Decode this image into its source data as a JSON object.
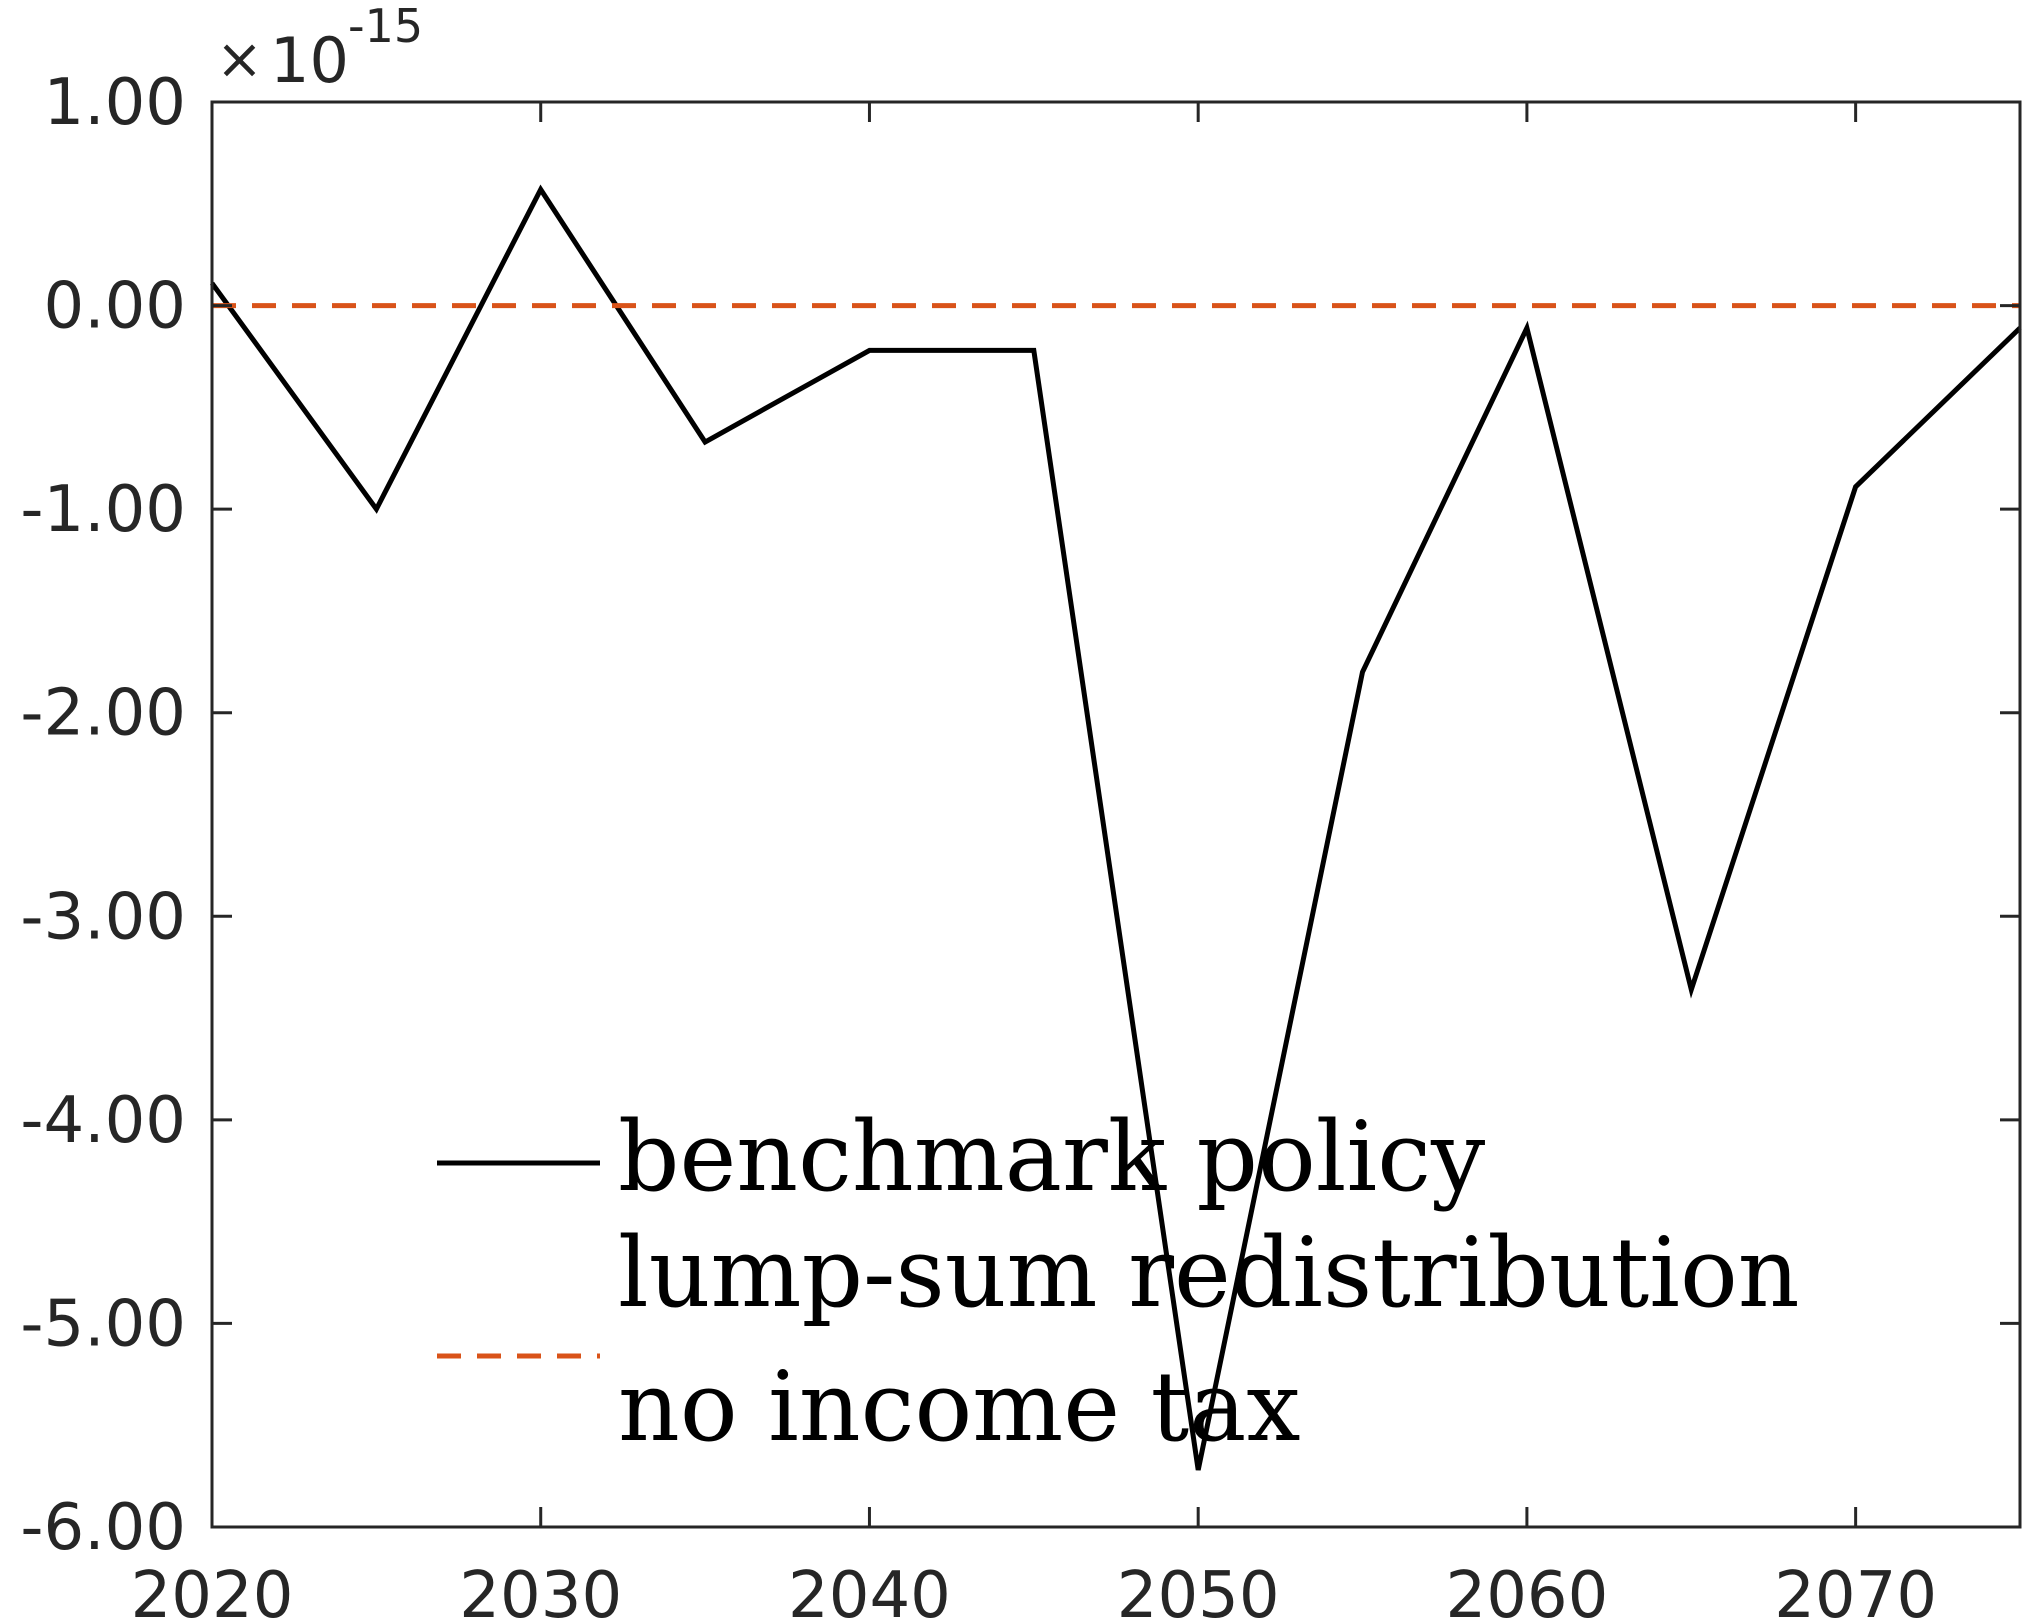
{
  "chart_data": {
    "type": "line",
    "x": [
      2020,
      2025,
      2030,
      2035,
      2040,
      2045,
      2050,
      2055,
      2060,
      2065,
      2070,
      2075
    ],
    "xlim": [
      2020,
      2075
    ],
    "ylim": [
      -6,
      1
    ],
    "y_multiplier": {
      "times": "×",
      "base": "10",
      "exponent": "-15"
    },
    "xticks": [
      2020,
      2030,
      2040,
      2050,
      2060,
      2070
    ],
    "xtick_labels": [
      "2020",
      "2030",
      "2040",
      "2050",
      "2060",
      "2070"
    ],
    "yticks": [
      1,
      0,
      -1,
      -2,
      -3,
      -4,
      -5,
      -6
    ],
    "ytick_labels": [
      "1.00",
      "0.00",
      "-1.00",
      "-2.00",
      "-3.00",
      "-4.00",
      "-5.00",
      "-6.00"
    ],
    "series": [
      {
        "name": "benchmark policy",
        "color": "#000000",
        "dash": "solid",
        "values": [
          0.11,
          -1.0,
          0.57,
          -0.67,
          -0.22,
          -0.22,
          -5.72,
          -1.8,
          -0.11,
          -3.36,
          -0.89,
          -0.11
        ]
      },
      {
        "name": "lump-sum redistribution",
        "color": "#000000",
        "dash": "none",
        "values": null
      },
      {
        "name": "no income tax",
        "color": "#D95319",
        "dash": "dashed",
        "values": [
          0,
          0,
          0,
          0,
          0,
          0,
          0,
          0,
          0,
          0,
          0,
          0
        ]
      }
    ],
    "legend_position": "bottom-center",
    "grid": false
  }
}
